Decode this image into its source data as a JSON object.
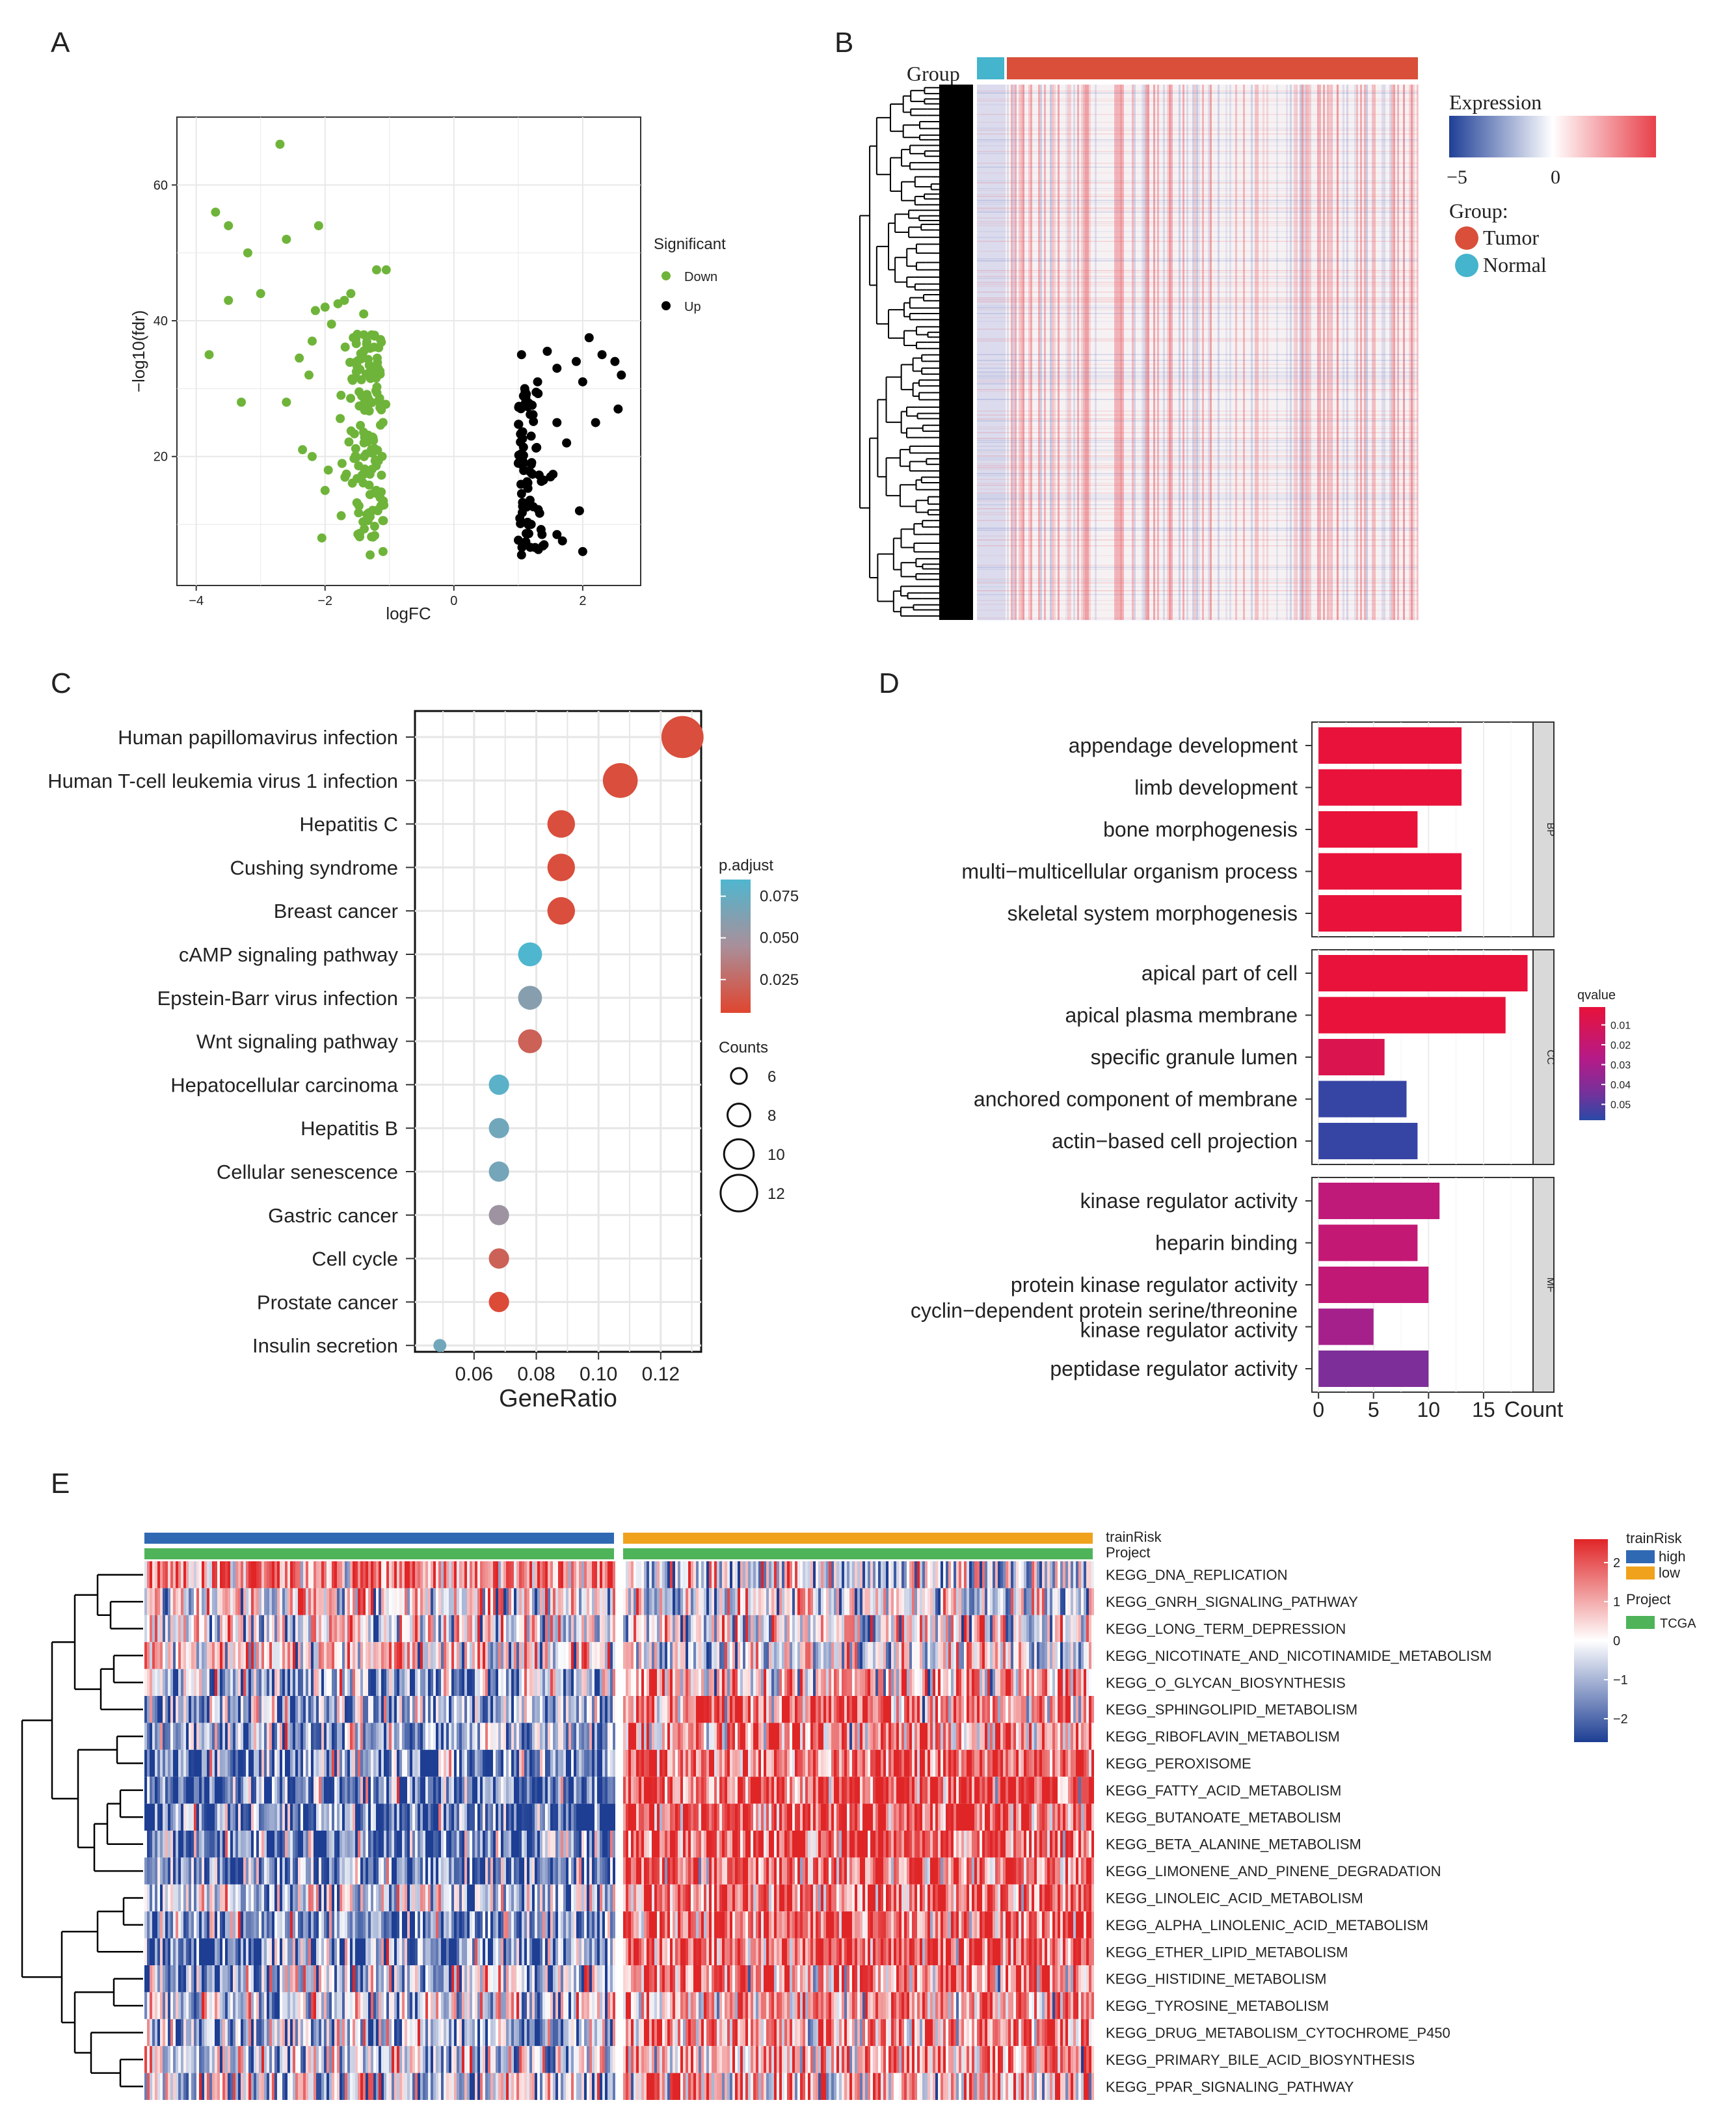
{
  "panels": {
    "A": "A",
    "B": "B",
    "C": "C",
    "D": "D",
    "E": "E"
  },
  "colors": {
    "down": "#6fb43a",
    "up": "#000000",
    "red": "#d7472f",
    "blue": "#35a6c7",
    "gridBg": "#ffffff",
    "grid": "#e9e9e9"
  },
  "chart_data": [
    {
      "id": "A",
      "type": "scatter",
      "title": "",
      "xlabel": "logFC",
      "ylabel": "−log10(fdr)",
      "xlim": [
        -4.3,
        2.9
      ],
      "ylim": [
        1,
        70
      ],
      "xticks": [
        "−4",
        "−2",
        "0",
        "2"
      ],
      "xtick_values": [
        -4,
        -2,
        0,
        2
      ],
      "yticks": [
        "20",
        "40",
        "60"
      ],
      "ytick_values": [
        20,
        40,
        60
      ],
      "legend": {
        "title": "Significant",
        "items": [
          "Down",
          "Up"
        ]
      },
      "series": [
        {
          "name": "Down",
          "color": "#6fb43a",
          "points": [
            [
              -2.7,
              66
            ],
            [
              -3.7,
              56
            ],
            [
              -3.5,
              54
            ],
            [
              -2.1,
              54
            ],
            [
              -2.6,
              52
            ],
            [
              -3.2,
              50
            ],
            [
              -3.0,
              44
            ],
            [
              -3.5,
              43
            ],
            [
              -1.2,
              47.5
            ],
            [
              -1.05,
              47.5
            ],
            [
              -1.6,
              44
            ],
            [
              -1.7,
              43
            ],
            [
              -1.8,
              42.5
            ],
            [
              -2.0,
              42
            ],
            [
              -2.15,
              41.5
            ],
            [
              -1.4,
              41
            ],
            [
              -1.9,
              39.5
            ],
            [
              -2.2,
              37
            ],
            [
              -1.5,
              38
            ],
            [
              -3.8,
              35
            ],
            [
              -2.4,
              34.5
            ],
            [
              -2.25,
              32
            ],
            [
              -3.3,
              28
            ],
            [
              -2.6,
              28
            ],
            [
              -2.35,
              21
            ],
            [
              -2.2,
              20
            ],
            [
              -1.95,
              18
            ],
            [
              -2.0,
              15
            ],
            [
              -2.05,
              8
            ],
            [
              -1.3,
              5.5
            ],
            [
              -1.1,
              6
            ]
          ]
        },
        {
          "name": "Up",
          "color": "#000000",
          "points": [
            [
              2.1,
              37.5
            ],
            [
              2.3,
              35
            ],
            [
              2.5,
              34
            ],
            [
              2.6,
              32
            ],
            [
              1.9,
              34
            ],
            [
              2.0,
              31
            ],
            [
              2.55,
              27
            ],
            [
              1.45,
              35.5
            ],
            [
              1.05,
              35
            ],
            [
              1.6,
              33
            ],
            [
              1.3,
              31
            ],
            [
              1.1,
              30
            ],
            [
              2.2,
              25
            ],
            [
              1.6,
              25
            ],
            [
              1.95,
              12
            ],
            [
              2.0,
              6
            ],
            [
              1.6,
              8.5
            ],
            [
              1.4,
              7
            ],
            [
              1.05,
              5.5
            ],
            [
              1.2,
              10
            ],
            [
              1.5,
              17
            ],
            [
              1.2,
              23
            ],
            [
              1.0,
              19
            ],
            [
              1.75,
              22
            ]
          ]
        }
      ],
      "cluster_counts": {
        "down_cluster": 150,
        "up_cluster": 75
      }
    },
    {
      "id": "B",
      "type": "heatmap",
      "title": "",
      "annotation_label": "Group",
      "legend": {
        "title": "Expression",
        "ticks": [
          "−5",
          "0"
        ],
        "group_title": "Group:",
        "groups": [
          "Tumor",
          "Normal"
        ]
      },
      "colors": {
        "low": "#1f3f97",
        "mid": "#ffffff",
        "high": "#e8404a",
        "tumor": "#d94f3a",
        "normal": "#45b4cd"
      }
    },
    {
      "id": "C",
      "type": "scatter",
      "title": "",
      "xlabel": "GeneRatio",
      "xlim": [
        0.041,
        0.133
      ],
      "xticks": [
        "0.06",
        "0.08",
        "0.10",
        "0.12"
      ],
      "xtick_values": [
        0.06,
        0.08,
        0.1,
        0.12
      ],
      "categories": [
        "Human papillomavirus infection",
        "Human T-cell leukemia virus 1 infection",
        "Hepatitis C",
        "Cushing syndrome",
        "Breast cancer",
        "cAMP signaling pathway",
        "Epstein-Barr virus infection",
        "Wnt signaling pathway",
        "Hepatocellular carcinoma",
        "Hepatitis B",
        "Cellular senescence",
        "Gastric cancer",
        "Cell cycle",
        "Prostate cancer",
        "Insulin secretion"
      ],
      "gene_ratio": [
        0.127,
        0.107,
        0.088,
        0.088,
        0.088,
        0.078,
        0.078,
        0.078,
        0.068,
        0.068,
        0.068,
        0.068,
        0.068,
        0.068,
        0.049
      ],
      "counts": [
        13,
        11,
        9,
        9,
        9,
        8,
        8,
        8,
        7,
        7,
        7,
        7,
        7,
        7,
        5
      ],
      "p_adjust": [
        0.01,
        0.01,
        0.01,
        0.01,
        0.01,
        0.085,
        0.06,
        0.02,
        0.08,
        0.07,
        0.068,
        0.05,
        0.02,
        0.008,
        0.07
      ],
      "legend": {
        "color_title": "p.adjust",
        "color_ticks": [
          "0.075",
          "0.050",
          "0.025"
        ],
        "color_tick_values": [
          0.075,
          0.05,
          0.025
        ],
        "size_title": "Counts",
        "size_ticks": [
          "6",
          "8",
          "10",
          "12"
        ],
        "size_tick_values": [
          6,
          8,
          10,
          12
        ]
      }
    },
    {
      "id": "D",
      "type": "bar",
      "orientation": "horizontal",
      "xlabel": "Count",
      "xticks": [
        "0",
        "5",
        "10",
        "15"
      ],
      "xtick_values": [
        0,
        5,
        10,
        15
      ],
      "xlim": [
        -0.6,
        19.5
      ],
      "facets": [
        {
          "name": "BP",
          "categories": [
            "appendage development",
            "limb development",
            "bone morphogenesis",
            "multi−multicellular organism process",
            "skeletal system morphogenesis"
          ],
          "values": [
            13,
            13,
            9,
            13,
            13
          ],
          "qvalue": [
            0.001,
            0.001,
            0.001,
            0.001,
            0.001
          ]
        },
        {
          "name": "CC",
          "categories": [
            "apical part of cell",
            "apical plasma membrane",
            "specific granule lumen",
            "anchored component of membrane",
            "actin−based cell projection"
          ],
          "values": [
            19,
            17,
            6,
            8,
            9
          ],
          "qvalue": [
            0.001,
            0.001,
            0.008,
            0.056,
            0.056
          ]
        },
        {
          "name": "MF",
          "categories": [
            "kinase regulator activity",
            "heparin binding",
            "protein kinase regulator activity",
            "cyclin−dependent protein serine/threonine kinase regulator activity",
            "peptidase regulator activity"
          ],
          "values": [
            11,
            9,
            10,
            5,
            10
          ],
          "qvalue": [
            0.022,
            0.02,
            0.021,
            0.031,
            0.042
          ]
        }
      ],
      "legend": {
        "title": "qvalue",
        "ticks": [
          "0.01",
          "0.02",
          "0.03",
          "0.04",
          "0.05"
        ],
        "tick_values": [
          0.01,
          0.02,
          0.03,
          0.04,
          0.05
        ]
      }
    },
    {
      "id": "E",
      "type": "heatmap",
      "title": "",
      "annotation_labels": [
        "trainRisk",
        "Project"
      ],
      "rows": [
        "KEGG_DNA_REPLICATION",
        "KEGG_GNRH_SIGNALING_PATHWAY",
        "KEGG_LONG_TERM_DEPRESSION",
        "KEGG_NICOTINATE_AND_NICOTINAMIDE_METABOLISM",
        "KEGG_O_GLYCAN_BIOSYNTHESIS",
        "KEGG_SPHINGOLIPID_METABOLISM",
        "KEGG_RIBOFLAVIN_METABOLISM",
        "KEGG_PEROXISOME",
        "KEGG_FATTY_ACID_METABOLISM",
        "KEGG_BUTANOATE_METABOLISM",
        "KEGG_BETA_ALANINE_METABOLISM",
        "KEGG_LIMONENE_AND_PINENE_DEGRADATION",
        "KEGG_LINOLEIC_ACID_METABOLISM",
        "KEGG_ALPHA_LINOLENIC_ACID_METABOLISM",
        "KEGG_ETHER_LIPID_METABOLISM",
        "KEGG_HISTIDINE_METABOLISM",
        "KEGG_TYROSINE_METABOLISM",
        "KEGG_DRUG_METABOLISM_CYTOCHROME_P450",
        "KEGG_PRIMARY_BILE_ACID_BIOSYNTHESIS",
        "KEGG_PPAR_SIGNALING_PATHWAY"
      ],
      "row_bias_high": [
        0.5,
        0.1,
        0.0,
        0.1,
        -0.3,
        -0.4,
        -0.4,
        -0.6,
        -0.7,
        -0.7,
        -0.6,
        -0.6,
        -0.2,
        -0.5,
        -0.6,
        -0.3,
        -0.2,
        -0.3,
        -0.2,
        -0.1
      ],
      "row_bias_low": [
        -0.2,
        -0.1,
        0.0,
        -0.1,
        0.3,
        0.5,
        0.5,
        0.7,
        0.8,
        0.8,
        0.7,
        0.7,
        0.7,
        0.8,
        0.7,
        0.5,
        0.4,
        0.5,
        0.4,
        0.3
      ],
      "legend": {
        "scale_ticks": [
          "2",
          "1",
          "0",
          "−1",
          "−2"
        ],
        "scale_tick_values": [
          2,
          1,
          0,
          -1,
          -2
        ],
        "risk_title": "trainRisk",
        "risk_items": [
          "high",
          "low"
        ],
        "project_title": "Project",
        "project_items": [
          "TCGA"
        ]
      },
      "colors": {
        "high": "#2f69b3",
        "low": "#f0a21d",
        "tcga": "#4fb35a",
        "neg": "#1d3e93",
        "pos": "#e02527"
      }
    }
  ]
}
